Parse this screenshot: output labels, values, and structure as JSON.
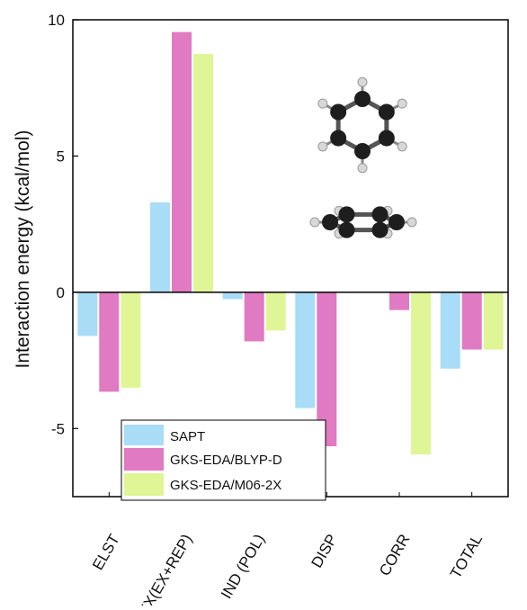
{
  "chart_data": {
    "type": "bar",
    "title": "",
    "xlabel": "",
    "ylabel": "Interaction energy (kcal/mol)",
    "ylim": [
      -7.5,
      10
    ],
    "yticks": [
      10,
      5,
      0,
      -5
    ],
    "categories": [
      "ELST",
      "EX(EX+REP)",
      "IND (POL)",
      "DISP",
      "CORR",
      "TOTAL"
    ],
    "series": [
      {
        "name": "SAPT",
        "color": "#a8dcf7",
        "values": [
          -1.6,
          3.3,
          -0.25,
          -4.25,
          null,
          -2.8
        ]
      },
      {
        "name": "GKS-EDA/BLYP-D",
        "color": "#e07ac2",
        "values": [
          -3.65,
          9.55,
          -1.8,
          -5.65,
          -0.65,
          -2.1
        ]
      },
      {
        "name": "GKS-EDA/M06-2X",
        "color": "#dff596",
        "values": [
          -3.5,
          8.75,
          -1.4,
          null,
          -5.95,
          -2.1
        ]
      }
    ],
    "legend_position": "bottom-left",
    "grid": false,
    "zero_line": true,
    "inset_image": "benzene-dimer-molecule"
  }
}
